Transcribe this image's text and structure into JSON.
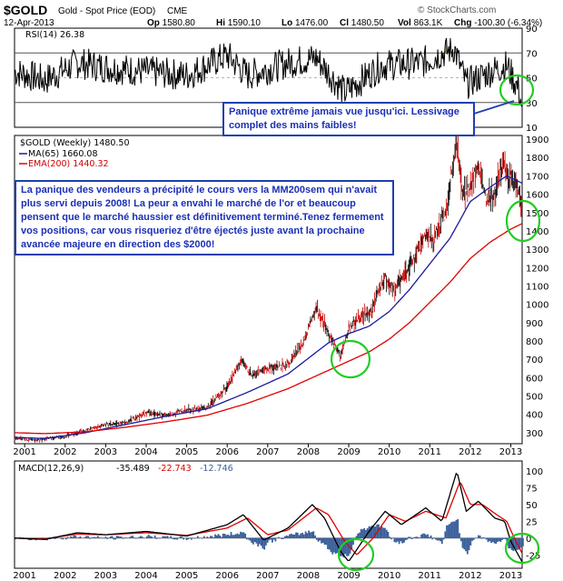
{
  "header": {
    "symbol": "$GOLD",
    "name": "Gold - Spot Price (EOD)",
    "exchange": "CME",
    "date": "12-Apr-2013",
    "watermark": "© StockCharts.com",
    "quote": [
      {
        "label": "Op",
        "value": "1580.80"
      },
      {
        "label": "Hi",
        "value": "1590.10"
      },
      {
        "label": "Lo",
        "value": "1476.00"
      },
      {
        "label": "Cl",
        "value": "1480.50"
      },
      {
        "label": "Vol",
        "value": "863.1K"
      },
      {
        "label": "Chg",
        "value": "-100.30 (-6.34%)"
      }
    ]
  },
  "annotations": {
    "rsi_note": "Panique extrême jamais vue jusqu'ici. Lessivage complet des mains faibles!",
    "price_note": "La panique des vendeurs a précipité le cours vers la MM200sem qui n'avait plus servi depuis 2008! La peur a envahi le marché de l'or et beaucoup pensent que le marché haussier est définitivement terminé.Tenez fermement vos positions, car vous risqueriez d'être éjectés juste avant la prochaine avancée majeure en direction des $2000!"
  },
  "colors": {
    "price": "#000000",
    "price_down": "#cc0000",
    "ma65": "#1a1aa0",
    "ema200": "#e00000",
    "macd_signal": "#e00000",
    "histogram": "#3a5f9a",
    "circle": "#22cc22",
    "rsi_fill": "#5a8a3a"
  },
  "chart_data": [
    {
      "type": "line",
      "panel": "RSI",
      "title": "RSI(14) 26.38",
      "ylim": [
        10,
        90
      ],
      "yticks": [
        10,
        30,
        50,
        70,
        90
      ],
      "reference_lines": [
        30,
        70
      ],
      "x": [
        2000.75,
        2001.5,
        2002.3,
        2003.1,
        2004.0,
        2005.0,
        2006.0,
        2006.5,
        2007.5,
        2008.2,
        2008.9,
        2009.8,
        2010.8,
        2011.6,
        2011.9,
        2012.5,
        2012.9,
        2013.2,
        2013.28
      ],
      "values": [
        55,
        48,
        62,
        58,
        55,
        52,
        68,
        52,
        62,
        66,
        38,
        60,
        62,
        74,
        45,
        55,
        60,
        40,
        26.38
      ]
    },
    {
      "type": "line",
      "panel": "Price",
      "title": "$GOLD (Weekly) 1480.50",
      "legend": [
        "MA(65) 1660.08",
        "EMA(200) 1440.32"
      ],
      "ylim": [
        240,
        1920
      ],
      "yticks": [
        300,
        400,
        500,
        600,
        700,
        800,
        900,
        1000,
        1100,
        1200,
        1300,
        1400,
        1500,
        1600,
        1700,
        1800,
        1900
      ],
      "xticks": [
        "2001",
        "2002",
        "2003",
        "2004",
        "2005",
        "2006",
        "2007",
        "2008",
        "2009",
        "2010",
        "2011",
        "2012",
        "2013"
      ],
      "series": [
        {
          "name": "$GOLD",
          "x": [
            2000.75,
            2001.0,
            2001.3,
            2001.6,
            2002.0,
            2002.5,
            2003.0,
            2003.5,
            2004.0,
            2004.5,
            2005.0,
            2005.5,
            2006.0,
            2006.35,
            2006.6,
            2007.0,
            2007.5,
            2007.9,
            2008.2,
            2008.4,
            2008.6,
            2008.8,
            2009.0,
            2009.2,
            2009.5,
            2009.9,
            2010.1,
            2010.5,
            2010.9,
            2011.1,
            2011.4,
            2011.67,
            2011.8,
            2012.0,
            2012.2,
            2012.4,
            2012.6,
            2012.8,
            2012.95,
            2013.1,
            2013.25,
            2013.28
          ],
          "values": [
            270,
            265,
            260,
            270,
            280,
            315,
            345,
            355,
            410,
            395,
            425,
            435,
            550,
            700,
            610,
            650,
            670,
            800,
            980,
            880,
            800,
            720,
            870,
            920,
            950,
            1150,
            1080,
            1200,
            1380,
            1360,
            1500,
            1900,
            1600,
            1650,
            1750,
            1580,
            1600,
            1780,
            1700,
            1670,
            1570,
            1480
          ]
        },
        {
          "name": "MA(65)",
          "x": [
            2000.75,
            2001.5,
            2002.5,
            2003.5,
            2004.5,
            2005.5,
            2006.5,
            2007.5,
            2008.5,
            2009.0,
            2009.5,
            2010.0,
            2010.5,
            2011.0,
            2011.5,
            2012.0,
            2012.5,
            2012.9,
            2013.28
          ],
          "values": [
            275,
            268,
            300,
            345,
            390,
            430,
            520,
            620,
            790,
            840,
            880,
            960,
            1080,
            1220,
            1360,
            1560,
            1640,
            1700,
            1660
          ]
        },
        {
          "name": "EMA(200)",
          "x": [
            2000.75,
            2001.5,
            2002.5,
            2003.5,
            2004.5,
            2005.5,
            2006.5,
            2007.5,
            2008.5,
            2009.0,
            2009.5,
            2010.0,
            2010.5,
            2011.0,
            2011.5,
            2012.0,
            2012.5,
            2013.0,
            2013.28
          ],
          "values": [
            300,
            295,
            305,
            330,
            360,
            395,
            460,
            540,
            640,
            690,
            740,
            810,
            900,
            1010,
            1120,
            1250,
            1340,
            1410,
            1440
          ]
        }
      ]
    },
    {
      "type": "line",
      "panel": "MACD",
      "title": "MACD(12,26,9)",
      "legend": [
        "-35.489",
        "-22.743",
        "-12.746"
      ],
      "ylim": [
        -45,
        115
      ],
      "yticks": [
        -25,
        0,
        25,
        50,
        75,
        100
      ],
      "xticks": [
        "2001",
        "2002",
        "2003",
        "2004",
        "2005",
        "2006",
        "2007",
        "2008",
        "2009",
        "2010",
        "2011",
        "2012",
        "2013"
      ],
      "series": [
        {
          "name": "MACD",
          "x": [
            2000.75,
            2001.5,
            2002.3,
            2003.0,
            2004.0,
            2005.0,
            2006.0,
            2006.4,
            2006.9,
            2007.5,
            2008.1,
            2008.4,
            2008.8,
            2009.0,
            2009.5,
            2009.9,
            2010.3,
            2010.9,
            2011.3,
            2011.67,
            2011.9,
            2012.2,
            2012.6,
            2012.85,
            2013.0,
            2013.28
          ],
          "values": [
            0,
            -2,
            8,
            5,
            10,
            3,
            20,
            35,
            -3,
            15,
            50,
            30,
            -20,
            -35,
            10,
            40,
            20,
            45,
            25,
            100,
            40,
            55,
            30,
            25,
            -5,
            -35.489
          ]
        },
        {
          "name": "Signal",
          "x": [
            2000.75,
            2001.5,
            2002.3,
            2003.0,
            2004.0,
            2005.0,
            2006.0,
            2006.5,
            2007.0,
            2007.5,
            2008.2,
            2008.5,
            2008.9,
            2009.2,
            2009.6,
            2010.0,
            2010.4,
            2010.9,
            2011.4,
            2011.75,
            2012.0,
            2012.3,
            2012.65,
            2012.9,
            2013.05,
            2013.28
          ],
          "values": [
            0,
            -1,
            6,
            5,
            8,
            4,
            15,
            30,
            5,
            12,
            45,
            35,
            -5,
            -25,
            0,
            35,
            25,
            40,
            30,
            85,
            50,
            50,
            35,
            25,
            5,
            -22.743
          ]
        }
      ]
    }
  ]
}
